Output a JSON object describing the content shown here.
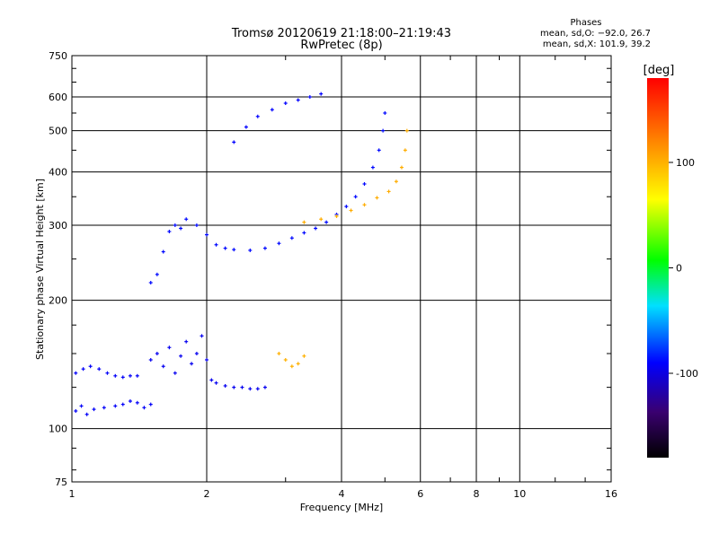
{
  "chart_data": {
    "type": "scatter",
    "title": "Tromsø 20120619 21:18:00–21:19:43",
    "subtitle": "RwPretec (8p)",
    "xlabel": "Frequency [MHz]",
    "ylabel": "Stationary phase Virtual Height [km]",
    "x_scale": "log",
    "y_scale": "log",
    "xlim": [
      1,
      16
    ],
    "ylim": [
      75,
      750
    ],
    "grid": true,
    "x_ticks": [
      1,
      2,
      4,
      6,
      8,
      10,
      16
    ],
    "x_tick_labels": [
      "1",
      "2",
      "4",
      "6",
      "8",
      "10",
      "16"
    ],
    "y_ticks": [
      75,
      100,
      200,
      300,
      400,
      500,
      600,
      750
    ],
    "y_tick_labels": [
      "75",
      "100",
      "200",
      "300",
      "400",
      "500",
      "600",
      "750"
    ],
    "colorbar": {
      "label": "[deg]",
      "range": [
        -180,
        180
      ],
      "ticks": [
        100,
        0,
        -100
      ],
      "tick_labels": [
        "100",
        "0",
        "-100"
      ]
    },
    "legend": {
      "title": "Phases",
      "lines": [
        "mean, sd,O: −92.0, 26.7",
        "mean, sd,X: 101.9, 39.2"
      ]
    },
    "traces": [
      {
        "name": "O",
        "phase": -92,
        "points": [
          [
            1.02,
            110
          ],
          [
            1.05,
            113
          ],
          [
            1.08,
            108
          ],
          [
            1.12,
            111
          ],
          [
            1.18,
            112
          ],
          [
            1.25,
            113
          ],
          [
            1.3,
            114
          ],
          [
            1.35,
            116
          ],
          [
            1.4,
            115
          ],
          [
            1.45,
            112
          ],
          [
            1.5,
            114
          ],
          [
            1.02,
            135
          ],
          [
            1.06,
            138
          ],
          [
            1.1,
            140
          ],
          [
            1.15,
            138
          ],
          [
            1.2,
            135
          ],
          [
            1.25,
            133
          ],
          [
            1.3,
            132
          ],
          [
            1.35,
            133
          ],
          [
            1.4,
            133
          ]
        ]
      },
      {
        "name": "O",
        "phase": -95,
        "points": [
          [
            1.5,
            145
          ],
          [
            1.55,
            150
          ],
          [
            1.6,
            140
          ],
          [
            1.65,
            155
          ],
          [
            1.7,
            135
          ],
          [
            1.75,
            148
          ],
          [
            1.8,
            160
          ],
          [
            1.85,
            142
          ],
          [
            1.9,
            150
          ],
          [
            1.95,
            165
          ],
          [
            2.0,
            145
          ],
          [
            2.05,
            130
          ],
          [
            2.1,
            128
          ],
          [
            2.2,
            126
          ],
          [
            2.3,
            125
          ],
          [
            2.4,
            125
          ],
          [
            2.5,
            124
          ],
          [
            2.6,
            124
          ],
          [
            2.7,
            125
          ]
        ]
      },
      {
        "name": "O",
        "phase": -88,
        "points": [
          [
            1.5,
            220
          ],
          [
            1.55,
            230
          ],
          [
            1.6,
            260
          ],
          [
            1.65,
            290
          ],
          [
            1.7,
            300
          ],
          [
            1.75,
            295
          ],
          [
            1.8,
            310
          ],
          [
            1.9,
            300
          ],
          [
            2.0,
            285
          ],
          [
            2.1,
            270
          ],
          [
            2.2,
            265
          ],
          [
            2.3,
            263
          ],
          [
            2.5,
            262
          ],
          [
            2.7,
            265
          ],
          [
            2.9,
            272
          ],
          [
            3.1,
            280
          ],
          [
            3.3,
            288
          ],
          [
            3.5,
            295
          ],
          [
            3.7,
            305
          ],
          [
            3.9,
            318
          ],
          [
            4.1,
            332
          ],
          [
            4.3,
            350
          ],
          [
            4.5,
            375
          ],
          [
            4.7,
            410
          ],
          [
            4.85,
            450
          ],
          [
            4.95,
            500
          ],
          [
            5.0,
            550
          ]
        ]
      },
      {
        "name": "O",
        "phase": -90,
        "points": [
          [
            2.3,
            470
          ],
          [
            2.45,
            510
          ],
          [
            2.6,
            540
          ],
          [
            2.8,
            560
          ],
          [
            3.0,
            580
          ],
          [
            3.2,
            590
          ],
          [
            3.4,
            600
          ],
          [
            3.6,
            610
          ]
        ]
      },
      {
        "name": "X",
        "phase": 102,
        "points": [
          [
            3.3,
            305
          ],
          [
            3.6,
            310
          ],
          [
            3.9,
            315
          ],
          [
            4.2,
            325
          ],
          [
            4.5,
            335
          ],
          [
            4.8,
            348
          ],
          [
            5.1,
            360
          ],
          [
            5.3,
            380
          ],
          [
            5.45,
            410
          ],
          [
            5.55,
            450
          ],
          [
            5.6,
            500
          ]
        ]
      },
      {
        "name": "X",
        "phase": 100,
        "points": [
          [
            2.9,
            150
          ],
          [
            3.0,
            145
          ],
          [
            3.1,
            140
          ],
          [
            3.2,
            142
          ],
          [
            3.3,
            148
          ]
        ]
      }
    ]
  }
}
